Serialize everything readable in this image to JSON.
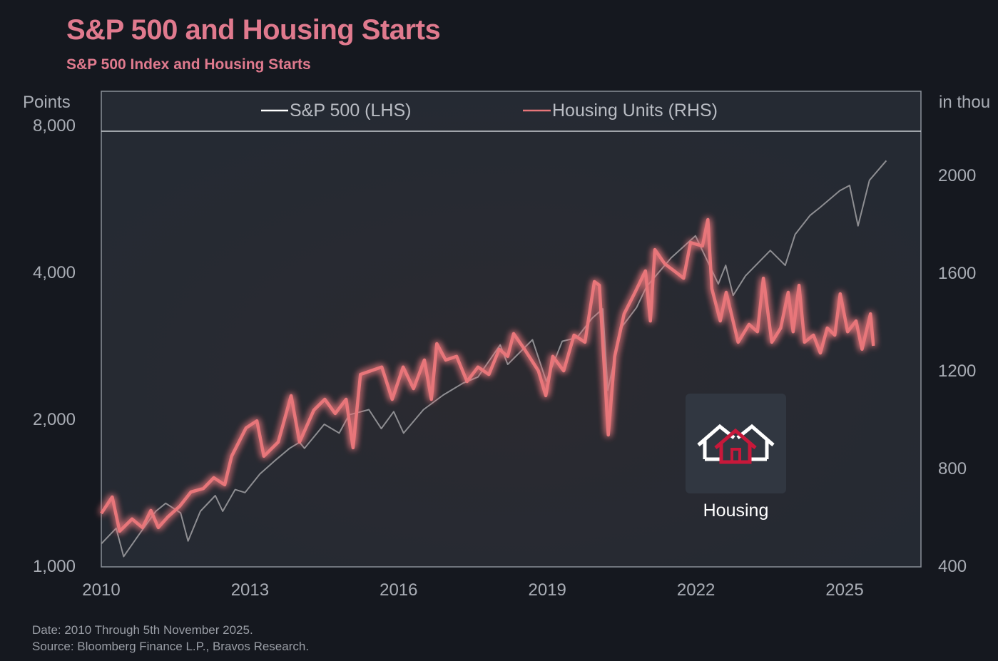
{
  "chart_data": {
    "type": "line",
    "title": "S&P 500 and Housing Starts",
    "subtitle": "S&P 500 Index and Housing Starts",
    "ylabel_left": "Points",
    "ylabel_right": "in thou",
    "left_axis": {
      "scale": "log",
      "range": [
        1000,
        8000
      ],
      "ticks": [
        "1,000",
        "2,000",
        "4,000",
        "8,000"
      ],
      "tick_values": [
        1000,
        2000,
        4000,
        8000
      ]
    },
    "right_axis": {
      "scale": "linear",
      "range": [
        400,
        2000
      ],
      "ticks": [
        "400",
        "800",
        "1200",
        "1600",
        "2000"
      ],
      "tick_values": [
        400,
        800,
        1200,
        1600,
        2000
      ]
    },
    "x_axis": {
      "range": [
        2010,
        2026.5
      ],
      "ticks": [
        "2010",
        "2013",
        "2016",
        "2019",
        "2022",
        "2025"
      ],
      "tick_values": [
        2010,
        2013,
        2016,
        2019,
        2022,
        2025
      ]
    },
    "legend_placement": "top-center",
    "grid": false,
    "series": [
      {
        "name": "S&P 500 (LHS)",
        "axis": "left",
        "color": "#8e8e92",
        "points": [
          [
            2010.0,
            1115
          ],
          [
            2010.3,
            1200
          ],
          [
            2010.45,
            1050
          ],
          [
            2010.8,
            1180
          ],
          [
            2011.1,
            1300
          ],
          [
            2011.3,
            1350
          ],
          [
            2011.6,
            1290
          ],
          [
            2011.75,
            1130
          ],
          [
            2012.0,
            1300
          ],
          [
            2012.3,
            1400
          ],
          [
            2012.45,
            1300
          ],
          [
            2012.7,
            1440
          ],
          [
            2012.9,
            1420
          ],
          [
            2013.2,
            1550
          ],
          [
            2013.5,
            1650
          ],
          [
            2013.8,
            1750
          ],
          [
            2014.0,
            1800
          ],
          [
            2014.1,
            1750
          ],
          [
            2014.5,
            1960
          ],
          [
            2014.8,
            1880
          ],
          [
            2015.0,
            2050
          ],
          [
            2015.4,
            2100
          ],
          [
            2015.65,
            1920
          ],
          [
            2015.9,
            2080
          ],
          [
            2016.1,
            1880
          ],
          [
            2016.5,
            2100
          ],
          [
            2016.9,
            2250
          ],
          [
            2017.3,
            2380
          ],
          [
            2017.6,
            2450
          ],
          [
            2018.05,
            2850
          ],
          [
            2018.2,
            2600
          ],
          [
            2018.7,
            2920
          ],
          [
            2018.98,
            2400
          ],
          [
            2019.3,
            2900
          ],
          [
            2019.6,
            2950
          ],
          [
            2019.9,
            3230
          ],
          [
            2020.12,
            3380
          ],
          [
            2020.22,
            2300
          ],
          [
            2020.5,
            3100
          ],
          [
            2020.8,
            3400
          ],
          [
            2021.0,
            3750
          ],
          [
            2021.5,
            4300
          ],
          [
            2021.99,
            4770
          ],
          [
            2022.2,
            4300
          ],
          [
            2022.45,
            3800
          ],
          [
            2022.6,
            4150
          ],
          [
            2022.75,
            3600
          ],
          [
            2023.0,
            3950
          ],
          [
            2023.5,
            4450
          ],
          [
            2023.8,
            4150
          ],
          [
            2024.0,
            4800
          ],
          [
            2024.3,
            5250
          ],
          [
            2024.5,
            5450
          ],
          [
            2024.9,
            5900
          ],
          [
            2025.1,
            6050
          ],
          [
            2025.27,
            5000
          ],
          [
            2025.5,
            6200
          ],
          [
            2025.84,
            6800
          ]
        ]
      },
      {
        "name": "Housing Units (RHS)",
        "axis": "right",
        "color": "#e8767a",
        "points": [
          [
            2010.0,
            619
          ],
          [
            2010.22,
            686
          ],
          [
            2010.37,
            546
          ],
          [
            2010.62,
            596
          ],
          [
            2010.83,
            561
          ],
          [
            2011.0,
            631
          ],
          [
            2011.15,
            561
          ],
          [
            2011.34,
            604
          ],
          [
            2011.58,
            648
          ],
          [
            2011.81,
            707
          ],
          [
            2012.06,
            721
          ],
          [
            2012.27,
            765
          ],
          [
            2012.49,
            736
          ],
          [
            2012.63,
            853
          ],
          [
            2012.92,
            969
          ],
          [
            2013.14,
            998
          ],
          [
            2013.28,
            853
          ],
          [
            2013.57,
            911
          ],
          [
            2013.83,
            1101
          ],
          [
            2014.0,
            911
          ],
          [
            2014.29,
            1042
          ],
          [
            2014.51,
            1086
          ],
          [
            2014.72,
            1028
          ],
          [
            2014.94,
            1086
          ],
          [
            2015.08,
            888
          ],
          [
            2015.23,
            1188
          ],
          [
            2015.44,
            1203
          ],
          [
            2015.66,
            1218
          ],
          [
            2015.87,
            1086
          ],
          [
            2016.09,
            1218
          ],
          [
            2016.3,
            1130
          ],
          [
            2016.52,
            1247
          ],
          [
            2016.66,
            1086
          ],
          [
            2016.77,
            1314
          ],
          [
            2016.95,
            1247
          ],
          [
            2017.17,
            1262
          ],
          [
            2017.38,
            1159
          ],
          [
            2017.6,
            1218
          ],
          [
            2017.82,
            1188
          ],
          [
            2018.03,
            1291
          ],
          [
            2018.2,
            1262
          ],
          [
            2018.32,
            1355
          ],
          [
            2018.54,
            1291
          ],
          [
            2018.82,
            1203
          ],
          [
            2018.97,
            1101
          ],
          [
            2019.11,
            1262
          ],
          [
            2019.33,
            1203
          ],
          [
            2019.54,
            1349
          ],
          [
            2019.76,
            1320
          ],
          [
            2019.95,
            1568
          ],
          [
            2020.05,
            1553
          ],
          [
            2020.23,
            940
          ],
          [
            2020.36,
            1262
          ],
          [
            2020.55,
            1436
          ],
          [
            2020.77,
            1524
          ],
          [
            2020.98,
            1612
          ],
          [
            2021.08,
            1407
          ],
          [
            2021.17,
            1699
          ],
          [
            2021.37,
            1641
          ],
          [
            2021.56,
            1612
          ],
          [
            2021.75,
            1582
          ],
          [
            2021.89,
            1728
          ],
          [
            2022.13,
            1714
          ],
          [
            2022.24,
            1822
          ],
          [
            2022.32,
            1539
          ],
          [
            2022.49,
            1407
          ],
          [
            2022.61,
            1524
          ],
          [
            2022.85,
            1320
          ],
          [
            2023.07,
            1393
          ],
          [
            2023.24,
            1363
          ],
          [
            2023.36,
            1582
          ],
          [
            2023.53,
            1320
          ],
          [
            2023.71,
            1378
          ],
          [
            2023.86,
            1524
          ],
          [
            2023.96,
            1363
          ],
          [
            2024.08,
            1553
          ],
          [
            2024.19,
            1320
          ],
          [
            2024.37,
            1349
          ],
          [
            2024.51,
            1276
          ],
          [
            2024.65,
            1378
          ],
          [
            2024.8,
            1349
          ],
          [
            2024.91,
            1518
          ],
          [
            2025.06,
            1363
          ],
          [
            2025.23,
            1407
          ],
          [
            2025.35,
            1291
          ],
          [
            2025.52,
            1436
          ],
          [
            2025.58,
            1305
          ]
        ]
      }
    ]
  },
  "overlay": {
    "icon": "houses-icon",
    "label": "Housing"
  },
  "footer": {
    "date_note": "Date: 2010 Through 5th November 2025.",
    "source": "Source: Bloomberg Finance L.P., Bravos Research."
  }
}
